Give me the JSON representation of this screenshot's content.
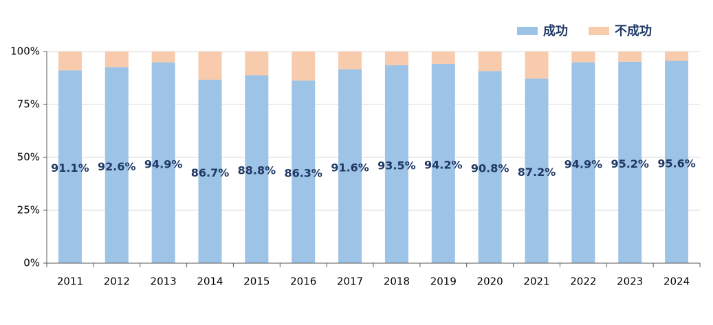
{
  "chart_data": {
    "type": "stacked_bar",
    "categories": [
      "2011",
      "2012",
      "2013",
      "2014",
      "2015",
      "2016",
      "2017",
      "2018",
      "2019",
      "2020",
      "2021",
      "2022",
      "2023",
      "2024"
    ],
    "series": [
      {
        "name": "成功",
        "color": "#9dc3e6",
        "values": [
          91.1,
          92.6,
          94.9,
          86.7,
          88.8,
          86.3,
          91.6,
          93.5,
          94.2,
          90.8,
          87.2,
          94.9,
          95.2,
          95.6
        ],
        "value_labels": [
          "91.1%",
          "92.6%",
          "94.9%",
          "86.7%",
          "88.8%",
          "86.3%",
          "91.6%",
          "93.5%",
          "94.2%",
          "90.8%",
          "87.2%",
          "94.9%",
          "95.2%",
          "95.6%"
        ]
      },
      {
        "name": "不成功",
        "color": "#f8cbad",
        "values": [
          8.9,
          7.4,
          5.1,
          13.3,
          11.2,
          13.7,
          8.4,
          6.5,
          5.8,
          9.2,
          12.8,
          5.1,
          4.8,
          4.4
        ]
      }
    ],
    "ylim": [
      0,
      100
    ],
    "yticks": [
      {
        "value": 0,
        "label": "0%"
      },
      {
        "value": 25,
        "label": "25%"
      },
      {
        "value": 50,
        "label": "50%"
      },
      {
        "value": 75,
        "label": "75%"
      },
      {
        "value": 100,
        "label": "100%"
      }
    ],
    "grid": true,
    "legend": "top-right"
  }
}
